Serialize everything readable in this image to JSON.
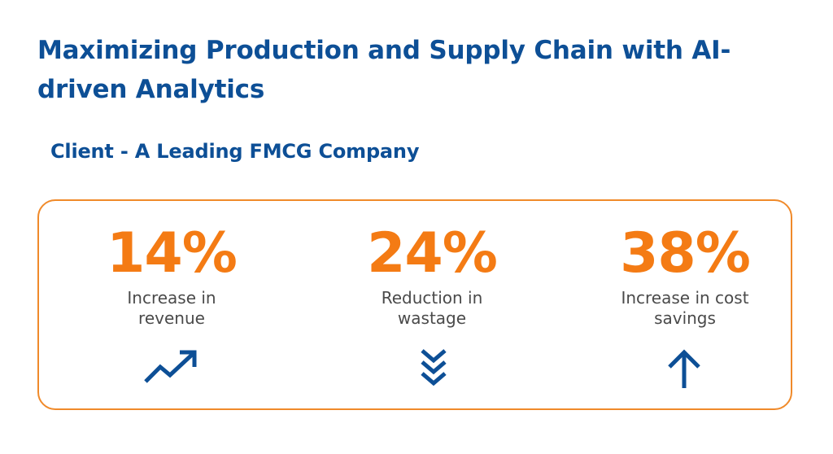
{
  "header": {
    "title": "Maximizing Production and Supply Chain with AI-driven Analytics",
    "client": "Client - A Leading FMCG Company"
  },
  "stats": [
    {
      "value": "14%",
      "label": "Increase in\nrevenue",
      "icon": "trend-up-icon"
    },
    {
      "value": "24%",
      "label": "Reduction in\nwastage",
      "icon": "double-chevron-down-icon"
    },
    {
      "value": "38%",
      "label": "Increase in cost\nsavings",
      "icon": "arrow-up-icon"
    }
  ],
  "colors": {
    "heading": "#0d4f96",
    "accent": "#f47b14",
    "border": "#f08a2a",
    "body_text": "#4a4a4a",
    "icon": "#0d4f96"
  }
}
